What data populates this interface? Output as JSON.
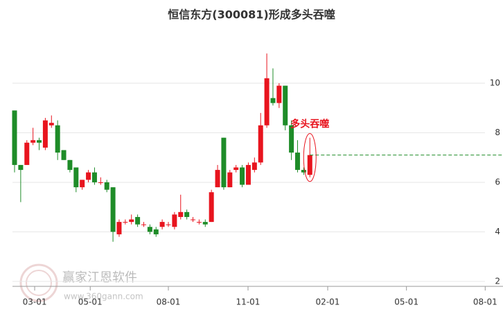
{
  "chart_data": {
    "type": "candlestick",
    "title": "恒信东方(300081)形成多头吞噬",
    "annotation": "多头吞噬",
    "watermark": "赢家江恩软件",
    "watermark_url": "www.360gann.com",
    "up_color": "#e8141e",
    "down_color": "#1e8c28",
    "reference_color": "#1e8c28",
    "open": [
      8.9,
      6.7,
      6.7,
      7.6,
      7.7,
      7.4,
      8.3,
      8.3,
      7.3,
      6.9,
      6.6,
      5.8,
      6.1,
      6.4,
      6.0,
      6.0,
      5.8,
      3.9,
      4.4,
      4.4,
      4.6,
      4.3,
      4.2,
      4.1,
      4.2,
      4.3,
      4.2,
      4.6,
      4.8,
      4.5,
      4.4,
      4.4,
      4.4,
      5.8,
      7.8,
      5.8,
      6.5,
      6.6,
      5.9,
      6.5,
      6.8,
      8.3,
      9.4,
      9.2,
      9.9,
      8.3,
      7.2,
      6.5,
      6.3
    ],
    "high": [
      8.9,
      6.7,
      7.7,
      8.2,
      7.8,
      8.6,
      8.7,
      8.5,
      7.3,
      6.9,
      6.6,
      6.1,
      6.5,
      6.6,
      6.2,
      6.1,
      5.8,
      4.5,
      4.5,
      4.7,
      4.7,
      4.4,
      4.3,
      4.2,
      4.5,
      4.4,
      4.8,
      5.5,
      4.9,
      4.6,
      4.5,
      4.5,
      5.7,
      6.7,
      7.8,
      6.5,
      6.7,
      6.7,
      6.8,
      7.0,
      8.8,
      11.2,
      10.6,
      10.0,
      9.9,
      8.5,
      7.7,
      6.6,
      7.8
    ],
    "low": [
      6.4,
      5.2,
      6.7,
      7.5,
      7.3,
      7.3,
      8.2,
      6.9,
      6.9,
      6.4,
      5.6,
      5.7,
      6.0,
      5.9,
      5.9,
      5.6,
      3.6,
      3.8,
      4.3,
      4.3,
      4.2,
      4.2,
      3.9,
      3.8,
      4.1,
      4.2,
      4.1,
      4.5,
      4.5,
      4.4,
      4.3,
      4.2,
      4.4,
      5.8,
      5.7,
      5.8,
      6.4,
      5.8,
      5.9,
      6.4,
      6.7,
      8.2,
      9.1,
      9.0,
      8.1,
      6.9,
      6.4,
      6.3,
      6.2
    ],
    "close": [
      6.7,
      6.5,
      7.6,
      7.7,
      7.6,
      8.5,
      8.4,
      7.2,
      6.9,
      6.5,
      5.8,
      6.1,
      6.4,
      6.0,
      6.0,
      5.7,
      4.0,
      4.4,
      4.4,
      4.5,
      4.3,
      4.3,
      4.0,
      3.9,
      4.4,
      4.3,
      4.7,
      4.8,
      4.6,
      4.5,
      4.4,
      4.3,
      5.6,
      6.5,
      5.8,
      6.4,
      6.6,
      5.9,
      6.7,
      6.8,
      8.3,
      10.2,
      9.2,
      9.9,
      8.3,
      7.2,
      6.5,
      6.4,
      7.1
    ],
    "ylim": [
      1.8,
      12.1
    ],
    "yticks": [
      2,
      4,
      6,
      8,
      10
    ],
    "xticks": [
      {
        "value": 3.27,
        "label": "03-01"
      },
      {
        "value": 12.3,
        "label": "05-01"
      },
      {
        "value": 25.0,
        "label": "08-01"
      },
      {
        "value": 37.95,
        "label": "11-01"
      },
      {
        "value": 50.9,
        "label": "02-01"
      },
      {
        "value": 63.7,
        "label": "05-01"
      },
      {
        "value": 76.5,
        "label": "08-01"
      }
    ],
    "grid": true
  }
}
